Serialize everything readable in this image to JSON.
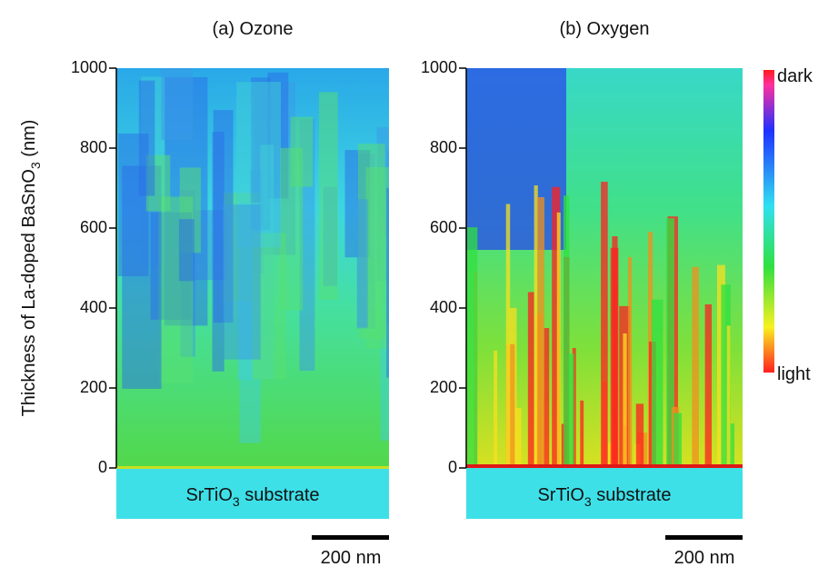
{
  "y_axis": {
    "label": {
      "text": "Thickness of La-doped BaSnO",
      "sub": "3",
      "tail": " (nm)"
    },
    "ticks": [
      0,
      200,
      400,
      600,
      800,
      1000
    ]
  },
  "panels": [
    {
      "title": "(a) Ozone",
      "substrate": {
        "text": "SrTiO",
        "sub": "3",
        "tail": " substrate"
      },
      "scale_bar": "200 nm"
    },
    {
      "title": "(b) Oxygen",
      "substrate": {
        "text": "SrTiO",
        "sub": "3",
        "tail": " substrate"
      },
      "scale_bar": "200 nm"
    }
  ],
  "colorbar": {
    "top": "dark",
    "bottom": "light"
  }
}
